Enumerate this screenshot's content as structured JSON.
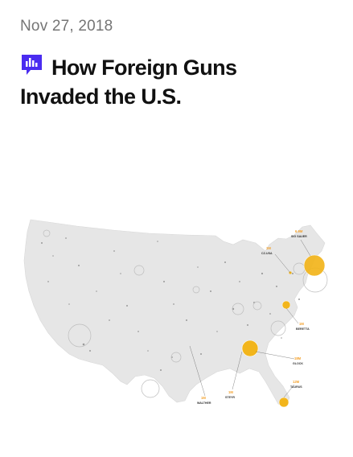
{
  "post": {
    "date": "Nov 27, 2018",
    "title_line1": "How Foreign Guns",
    "title_line2": "Invaded the U.S.",
    "icon": "bar-chart-icon"
  },
  "map_labels": {
    "sig_sauer_value": "6.9M",
    "sig_sauer_name": "SIG SAUER",
    "cz_usa_value": "1M",
    "cz_usa_name": "CZ-USA",
    "beretta_value": "1M",
    "beretta_name": "BERETTA",
    "glock_value": "18M",
    "glock_name": "GLOCK",
    "taurus_value": "12M",
    "taurus_name": "TAURUS",
    "steyr_value": "1M",
    "steyr_name": "STEYR",
    "walther_value": "1M",
    "walther_name": "WALTHER"
  },
  "colors": {
    "accent": "#4a2cf0",
    "highlight": "#f2b51c",
    "map_fill": "#e6e6e6"
  }
}
